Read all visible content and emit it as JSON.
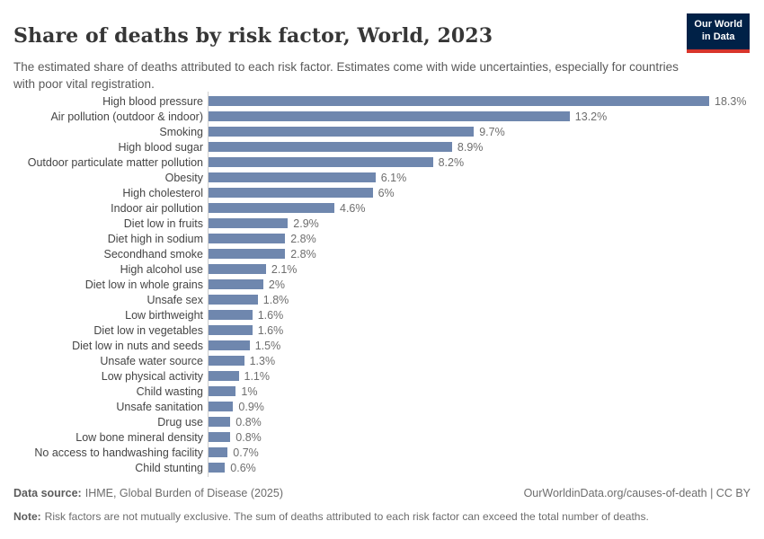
{
  "header": {
    "title": "Share of deaths by risk factor, World, 2023",
    "subtitle": "The estimated share of deaths attributed to each risk factor. Estimates come with wide uncertainties, especially for countries with poor vital registration.",
    "logo": {
      "line1": "Our World",
      "line2": "in Data"
    }
  },
  "chart_data": {
    "type": "bar",
    "orientation": "horizontal",
    "title": "Share of deaths by risk factor, World, 2023",
    "unit": "%",
    "xlim": [
      0,
      18.3
    ],
    "grid": false,
    "legend": "none",
    "categories": [
      "High blood pressure",
      "Air pollution (outdoor & indoor)",
      "Smoking",
      "High blood sugar",
      "Outdoor particulate matter pollution",
      "Obesity",
      "High cholesterol",
      "Indoor air pollution",
      "Diet low in fruits",
      "Diet high in sodium",
      "Secondhand smoke",
      "High alcohol use",
      "Diet low in whole grains",
      "Unsafe sex",
      "Low birthweight",
      "Diet low in vegetables",
      "Diet low in nuts and seeds",
      "Unsafe water source",
      "Low physical activity",
      "Child wasting",
      "Unsafe sanitation",
      "Drug use",
      "Low bone mineral density",
      "No access to handwashing facility",
      "Child stunting"
    ],
    "values": [
      18.3,
      13.2,
      9.7,
      8.9,
      8.2,
      6.1,
      6,
      4.6,
      2.9,
      2.8,
      2.8,
      2.1,
      2,
      1.8,
      1.6,
      1.6,
      1.5,
      1.3,
      1.1,
      1,
      0.9,
      0.8,
      0.8,
      0.7,
      0.6
    ],
    "value_labels": [
      "18.3%",
      "13.2%",
      "9.7%",
      "8.9%",
      "8.2%",
      "6.1%",
      "6%",
      "4.6%",
      "2.9%",
      "2.8%",
      "2.8%",
      "2.1%",
      "2%",
      "1.8%",
      "1.6%",
      "1.6%",
      "1.5%",
      "1.3%",
      "1.1%",
      "1%",
      "0.9%",
      "0.8%",
      "0.8%",
      "0.7%",
      "0.6%"
    ]
  },
  "footer": {
    "source_label": "Data source:",
    "source_text": "IHME, Global Burden of Disease (2025)",
    "link_text": "OurWorldinData.org/causes-of-death | CC BY",
    "note_label": "Note:",
    "note_text": "Risk factors are not mutually exclusive. The sum of deaths attributed to each risk factor can exceed the total number of deaths."
  },
  "colors": {
    "bar": "#6f87ae",
    "logo_bg": "#002147",
    "logo_accent": "#d8352b",
    "axis_line": "#cfcfcf"
  }
}
